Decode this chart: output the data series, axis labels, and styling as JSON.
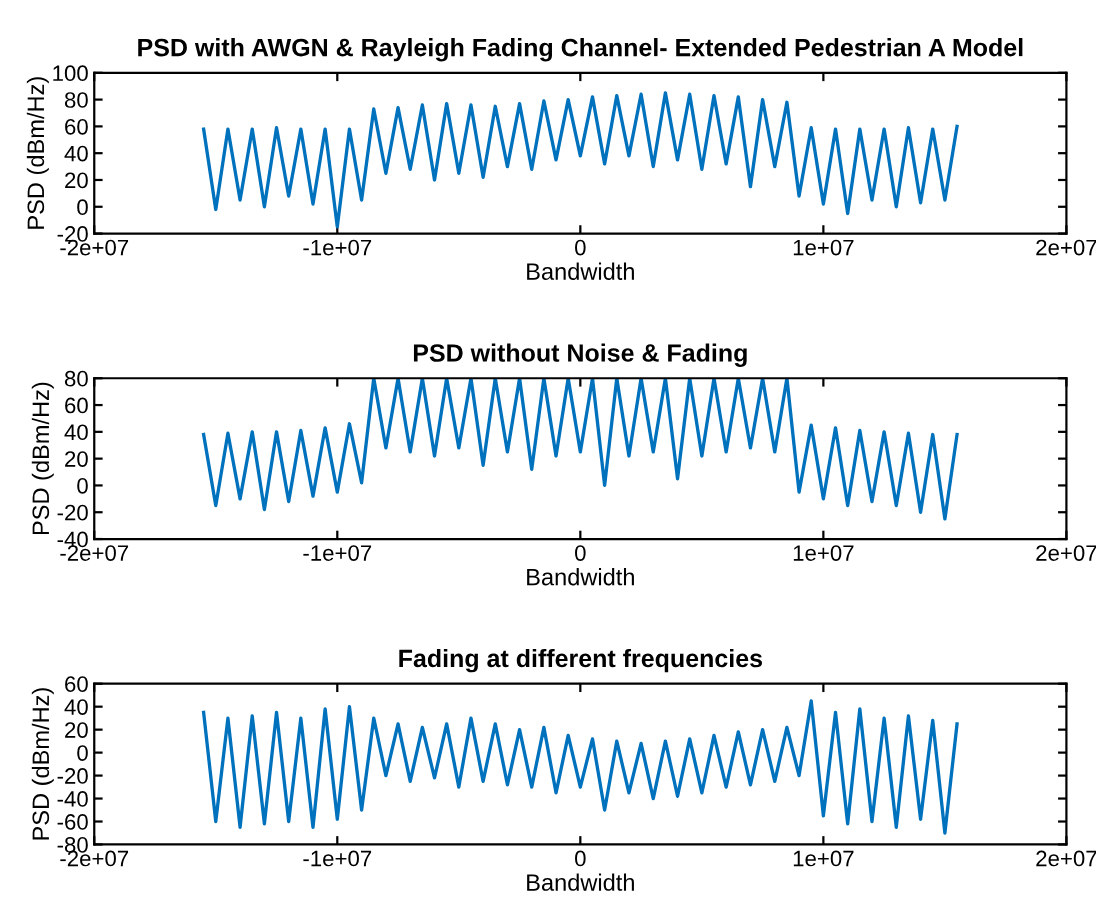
{
  "chart_data": [
    {
      "type": "line",
      "title": "PSD with AWGN & Rayleigh Fading Channel- Extended Pedestrian A Model",
      "xlabel": "Bandwidth",
      "ylabel": "PSD (dBm/Hz)",
      "xlim": [
        -20000000,
        20000000
      ],
      "xticks": [
        {
          "value": -20000000,
          "label": "-2e+07"
        },
        {
          "value": -10000000,
          "label": "-1e+07"
        },
        0,
        {
          "value": 10000000,
          "label": "1e+07"
        },
        {
          "value": 20000000,
          "label": "2e+07"
        }
      ],
      "ylim": [
        -20,
        100
      ],
      "yticks": [
        -20,
        0,
        20,
        40,
        60,
        80,
        100
      ],
      "grid": false,
      "x": [
        -15500000,
        -15000000,
        -14500000,
        -14000000,
        -13500000,
        -13000000,
        -12500000,
        -12000000,
        -11500000,
        -11000000,
        -10500000,
        -10000000,
        -9500000,
        -9000000,
        -8500000,
        -8000000,
        -7500000,
        -7000000,
        -6500000,
        -6000000,
        -5500000,
        -5000000,
        -4500000,
        -4000000,
        -3500000,
        -3000000,
        -2500000,
        -2000000,
        -1500000,
        -1000000,
        -500000,
        0,
        500000,
        1000000,
        1500000,
        2000000,
        2500000,
        3000000,
        3500000,
        4000000,
        4500000,
        5000000,
        5500000,
        6000000,
        6500000,
        7000000,
        7500000,
        8000000,
        8500000,
        9000000,
        9500000,
        10000000,
        10500000,
        11000000,
        11500000,
        12000000,
        12500000,
        13000000,
        13500000,
        14000000,
        14500000,
        15000000,
        15500000
      ],
      "series": [
        {
          "color": "#0072bd",
          "values": [
            58,
            -2,
            58,
            5,
            58,
            0,
            59,
            8,
            58,
            2,
            58,
            -15,
            58,
            5,
            73,
            25,
            74,
            28,
            76,
            20,
            77,
            25,
            76,
            22,
            75,
            30,
            77,
            28,
            79,
            35,
            80,
            38,
            82,
            32,
            83,
            38,
            84,
            30,
            85,
            35,
            84,
            28,
            83,
            32,
            82,
            15,
            80,
            30,
            78,
            8,
            59,
            2,
            58,
            -5,
            58,
            5,
            58,
            0,
            59,
            3,
            58,
            5,
            60
          ]
        }
      ]
    },
    {
      "type": "line",
      "title": "PSD without Noise & Fading",
      "xlabel": "Bandwidth",
      "ylabel": "PSD (dBm/Hz)",
      "xlim": [
        -20000000,
        20000000
      ],
      "xticks": [
        {
          "value": -20000000,
          "label": "-2e+07"
        },
        {
          "value": -10000000,
          "label": "-1e+07"
        },
        0,
        {
          "value": 10000000,
          "label": "1e+07"
        },
        {
          "value": 20000000,
          "label": "2e+07"
        }
      ],
      "ylim": [
        -40,
        80
      ],
      "yticks": [
        -40,
        -20,
        0,
        20,
        40,
        60,
        80
      ],
      "grid": false,
      "x": [
        -15500000,
        -15000000,
        -14500000,
        -14000000,
        -13500000,
        -13000000,
        -12500000,
        -12000000,
        -11500000,
        -11000000,
        -10500000,
        -10000000,
        -9500000,
        -9000000,
        -8500000,
        -8000000,
        -7500000,
        -7000000,
        -6500000,
        -6000000,
        -5500000,
        -5000000,
        -4500000,
        -4000000,
        -3500000,
        -3000000,
        -2500000,
        -2000000,
        -1500000,
        -1000000,
        -500000,
        0,
        500000,
        1000000,
        1500000,
        2000000,
        2500000,
        3000000,
        3500000,
        4000000,
        4500000,
        5000000,
        5500000,
        6000000,
        6500000,
        7000000,
        7500000,
        8000000,
        8500000,
        9000000,
        9500000,
        10000000,
        10500000,
        11000000,
        11500000,
        12000000,
        12500000,
        13000000,
        13500000,
        14000000,
        14500000,
        15000000,
        15500000
      ],
      "series": [
        {
          "color": "#0072bd",
          "values": [
            38,
            -15,
            39,
            -10,
            40,
            -18,
            40,
            -12,
            41,
            -8,
            43,
            -5,
            46,
            2,
            80,
            28,
            80,
            25,
            80,
            22,
            80,
            28,
            80,
            15,
            80,
            25,
            80,
            12,
            80,
            22,
            80,
            25,
            80,
            0,
            80,
            22,
            80,
            25,
            80,
            5,
            80,
            22,
            80,
            25,
            80,
            28,
            80,
            25,
            80,
            -5,
            45,
            -10,
            43,
            -15,
            41,
            -12,
            40,
            -15,
            39,
            -20,
            38,
            -25,
            38
          ]
        }
      ]
    },
    {
      "type": "line",
      "title": "Fading at different frequencies",
      "xlabel": "Bandwidth",
      "ylabel": "PSD (dBm/Hz)",
      "xlim": [
        -20000000,
        20000000
      ],
      "xticks": [
        {
          "value": -20000000,
          "label": "-2e+07"
        },
        {
          "value": -10000000,
          "label": "-1e+07"
        },
        0,
        {
          "value": 10000000,
          "label": "1e+07"
        },
        {
          "value": 20000000,
          "label": "2e+07"
        }
      ],
      "ylim": [
        -80,
        60
      ],
      "yticks": [
        -80,
        -60,
        -40,
        -20,
        0,
        20,
        40,
        60
      ],
      "grid": false,
      "x": [
        -15500000,
        -15000000,
        -14500000,
        -14000000,
        -13500000,
        -13000000,
        -12500000,
        -12000000,
        -11500000,
        -11000000,
        -10500000,
        -10000000,
        -9500000,
        -9000000,
        -8500000,
        -8000000,
        -7500000,
        -7000000,
        -6500000,
        -6000000,
        -5500000,
        -5000000,
        -4500000,
        -4000000,
        -3500000,
        -3000000,
        -2500000,
        -2000000,
        -1500000,
        -1000000,
        -500000,
        0,
        500000,
        1000000,
        1500000,
        2000000,
        2500000,
        3000000,
        3500000,
        4000000,
        4500000,
        5000000,
        5500000,
        6000000,
        6500000,
        7000000,
        7500000,
        8000000,
        8500000,
        9000000,
        9500000,
        10000000,
        10500000,
        11000000,
        11500000,
        12000000,
        12500000,
        13000000,
        13500000,
        14000000,
        14500000,
        15000000,
        15500000
      ],
      "series": [
        {
          "color": "#0072bd",
          "values": [
            35,
            -60,
            30,
            -65,
            32,
            -62,
            35,
            -60,
            30,
            -65,
            38,
            -58,
            40,
            -50,
            30,
            -20,
            25,
            -25,
            22,
            -22,
            25,
            -30,
            30,
            -25,
            25,
            -28,
            20,
            -30,
            22,
            -35,
            15,
            -30,
            12,
            -50,
            10,
            -35,
            8,
            -40,
            10,
            -38,
            12,
            -35,
            15,
            -30,
            18,
            -28,
            20,
            -25,
            22,
            -20,
            45,
            -55,
            35,
            -62,
            38,
            -60,
            30,
            -65,
            32,
            -58,
            28,
            -70,
            25
          ]
        }
      ]
    }
  ]
}
